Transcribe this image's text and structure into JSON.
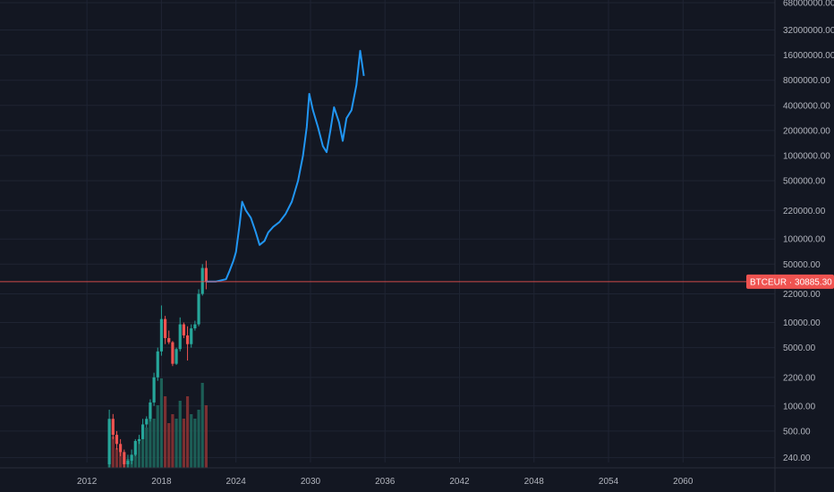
{
  "chart_data": {
    "type": "line",
    "symbol": "BTCEUR",
    "last_price": "30885.30",
    "last_price_value": 30885.3,
    "price_scale": "log",
    "grid": true,
    "colors": {
      "background": "#131722",
      "projection": "#2196f3",
      "candle_up": "#26a69a",
      "candle_down": "#ef5350",
      "volume_up": "#1e6b5f",
      "volume_down": "#8e3434",
      "price_line": "#ef5350",
      "price_label_bg": "#ef5350",
      "grid": "#1f2433",
      "axis_text": "#b2b5be"
    },
    "xlim": [
      2005.0,
      2067.4
    ],
    "ylim": [
      210,
      68000000
    ],
    "x_ticks": [
      {
        "value": 2012,
        "label": "2012"
      },
      {
        "value": 2018,
        "label": "2018"
      },
      {
        "value": 2024,
        "label": "2024"
      },
      {
        "value": 2030,
        "label": "2030"
      },
      {
        "value": 2036,
        "label": "2036"
      },
      {
        "value": 2042,
        "label": "2042"
      },
      {
        "value": 2048,
        "label": "2048"
      },
      {
        "value": 2054,
        "label": "2054"
      },
      {
        "value": 2060,
        "label": "2060"
      }
    ],
    "y_ticks": [
      {
        "value": 240,
        "label": "240.00"
      },
      {
        "value": 500,
        "label": "500.00"
      },
      {
        "value": 1000,
        "label": "1000.00"
      },
      {
        "value": 2200,
        "label": "2200.00"
      },
      {
        "value": 5000,
        "label": "5000.00"
      },
      {
        "value": 10000,
        "label": "10000.00"
      },
      {
        "value": 22000,
        "label": "22000.00"
      },
      {
        "value": 50000,
        "label": "50000.00"
      },
      {
        "value": 100000,
        "label": "100000.00"
      },
      {
        "value": 220000,
        "label": "220000.00"
      },
      {
        "value": 500000,
        "label": "500000.00"
      },
      {
        "value": 1000000,
        "label": "1000000.00"
      },
      {
        "value": 2000000,
        "label": "2000000.00"
      },
      {
        "value": 4000000,
        "label": "4000000.00"
      },
      {
        "value": 8000000,
        "label": "8000000.00"
      },
      {
        "value": 16000000,
        "label": "16000000.00"
      },
      {
        "value": 32000000,
        "label": "32000000.00"
      },
      {
        "value": 68000000,
        "label": "68000000.00"
      }
    ],
    "historical_candles": [
      {
        "x": 2013.8,
        "o": 200,
        "h": 900,
        "l": 180,
        "c": 700
      },
      {
        "x": 2014.1,
        "o": 700,
        "h": 800,
        "l": 400,
        "c": 450
      },
      {
        "x": 2014.4,
        "o": 450,
        "h": 500,
        "l": 300,
        "c": 350
      },
      {
        "x": 2014.7,
        "o": 350,
        "h": 400,
        "l": 250,
        "c": 280
      },
      {
        "x": 2015.0,
        "o": 280,
        "h": 300,
        "l": 180,
        "c": 200
      },
      {
        "x": 2015.3,
        "o": 200,
        "h": 260,
        "l": 180,
        "c": 220
      },
      {
        "x": 2015.6,
        "o": 220,
        "h": 300,
        "l": 200,
        "c": 260
      },
      {
        "x": 2015.9,
        "o": 260,
        "h": 400,
        "l": 250,
        "c": 380
      },
      {
        "x": 2016.2,
        "o": 380,
        "h": 450,
        "l": 350,
        "c": 400
      },
      {
        "x": 2016.5,
        "o": 400,
        "h": 700,
        "l": 400,
        "c": 600
      },
      {
        "x": 2016.8,
        "o": 600,
        "h": 750,
        "l": 550,
        "c": 700
      },
      {
        "x": 2017.1,
        "o": 700,
        "h": 1200,
        "l": 650,
        "c": 1100
      },
      {
        "x": 2017.4,
        "o": 1100,
        "h": 2500,
        "l": 1000,
        "c": 2200
      },
      {
        "x": 2017.7,
        "o": 2200,
        "h": 5000,
        "l": 2000,
        "c": 4500
      },
      {
        "x": 2018.0,
        "o": 4500,
        "h": 16000,
        "l": 4000,
        "c": 11000
      },
      {
        "x": 2018.3,
        "o": 11000,
        "h": 12000,
        "l": 5500,
        "c": 6500
      },
      {
        "x": 2018.6,
        "o": 6500,
        "h": 8000,
        "l": 5500,
        "c": 5800
      },
      {
        "x": 2018.9,
        "o": 5800,
        "h": 6000,
        "l": 3000,
        "c": 3200
      },
      {
        "x": 2019.2,
        "o": 3200,
        "h": 5000,
        "l": 3100,
        "c": 4800
      },
      {
        "x": 2019.5,
        "o": 4800,
        "h": 11500,
        "l": 4500,
        "c": 9500
      },
      {
        "x": 2019.8,
        "o": 9500,
        "h": 10000,
        "l": 6500,
        "c": 7000
      },
      {
        "x": 2020.1,
        "o": 7000,
        "h": 9000,
        "l": 3500,
        "c": 5500
      },
      {
        "x": 2020.4,
        "o": 5500,
        "h": 9500,
        "l": 5000,
        "c": 8500
      },
      {
        "x": 2020.7,
        "o": 8500,
        "h": 10500,
        "l": 8000,
        "c": 9500
      },
      {
        "x": 2021.0,
        "o": 9500,
        "h": 25000,
        "l": 9000,
        "c": 22000
      },
      {
        "x": 2021.3,
        "o": 22000,
        "h": 50000,
        "l": 21000,
        "c": 45000
      },
      {
        "x": 2021.6,
        "o": 45000,
        "h": 55000,
        "l": 25000,
        "c": 30885
      }
    ],
    "volume_bars": [
      {
        "x": 2013.8,
        "v": 0.5,
        "up": true
      },
      {
        "x": 2014.1,
        "v": 0.35,
        "up": false
      },
      {
        "x": 2014.4,
        "v": 0.22,
        "up": false
      },
      {
        "x": 2014.7,
        "v": 0.18,
        "up": false
      },
      {
        "x": 2015.0,
        "v": 0.12,
        "up": false
      },
      {
        "x": 2015.3,
        "v": 0.1,
        "up": true
      },
      {
        "x": 2015.6,
        "v": 0.14,
        "up": true
      },
      {
        "x": 2015.9,
        "v": 0.2,
        "up": true
      },
      {
        "x": 2016.2,
        "v": 0.3,
        "up": true
      },
      {
        "x": 2016.5,
        "v": 0.4,
        "up": true
      },
      {
        "x": 2016.8,
        "v": 0.45,
        "up": true
      },
      {
        "x": 2017.1,
        "v": 0.65,
        "up": true
      },
      {
        "x": 2017.4,
        "v": 0.55,
        "up": true
      },
      {
        "x": 2017.7,
        "v": 0.7,
        "up": true
      },
      {
        "x": 2018.0,
        "v": 1.0,
        "up": true
      },
      {
        "x": 2018.3,
        "v": 0.8,
        "up": false
      },
      {
        "x": 2018.6,
        "v": 0.5,
        "up": false
      },
      {
        "x": 2018.9,
        "v": 0.6,
        "up": false
      },
      {
        "x": 2019.2,
        "v": 0.55,
        "up": true
      },
      {
        "x": 2019.5,
        "v": 0.75,
        "up": true
      },
      {
        "x": 2019.8,
        "v": 0.55,
        "up": false
      },
      {
        "x": 2020.1,
        "v": 0.8,
        "up": false
      },
      {
        "x": 2020.4,
        "v": 0.6,
        "up": true
      },
      {
        "x": 2020.7,
        "v": 0.55,
        "up": true
      },
      {
        "x": 2021.0,
        "v": 0.65,
        "up": true
      },
      {
        "x": 2021.3,
        "v": 0.95,
        "up": true
      },
      {
        "x": 2021.6,
        "v": 0.7,
        "up": false
      }
    ],
    "projection_series": [
      {
        "x": 2021.6,
        "y": 30885
      },
      {
        "x": 2022.4,
        "y": 31000
      },
      {
        "x": 2023.2,
        "y": 33000
      },
      {
        "x": 2023.5,
        "y": 42000
      },
      {
        "x": 2023.8,
        "y": 55000
      },
      {
        "x": 2024.0,
        "y": 70000
      },
      {
        "x": 2024.3,
        "y": 150000
      },
      {
        "x": 2024.5,
        "y": 280000
      },
      {
        "x": 2024.8,
        "y": 220000
      },
      {
        "x": 2025.2,
        "y": 180000
      },
      {
        "x": 2025.6,
        "y": 120000
      },
      {
        "x": 2025.9,
        "y": 85000
      },
      {
        "x": 2026.3,
        "y": 95000
      },
      {
        "x": 2026.6,
        "y": 120000
      },
      {
        "x": 2027.0,
        "y": 140000
      },
      {
        "x": 2027.5,
        "y": 160000
      },
      {
        "x": 2028.0,
        "y": 200000
      },
      {
        "x": 2028.5,
        "y": 280000
      },
      {
        "x": 2029.0,
        "y": 500000
      },
      {
        "x": 2029.4,
        "y": 1000000
      },
      {
        "x": 2029.7,
        "y": 2200000
      },
      {
        "x": 2029.9,
        "y": 5500000
      },
      {
        "x": 2030.2,
        "y": 3500000
      },
      {
        "x": 2030.6,
        "y": 2200000
      },
      {
        "x": 2031.0,
        "y": 1300000
      },
      {
        "x": 2031.3,
        "y": 1100000
      },
      {
        "x": 2031.6,
        "y": 2000000
      },
      {
        "x": 2031.9,
        "y": 3800000
      },
      {
        "x": 2032.3,
        "y": 2500000
      },
      {
        "x": 2032.6,
        "y": 1500000
      },
      {
        "x": 2032.9,
        "y": 2800000
      },
      {
        "x": 2033.3,
        "y": 3500000
      },
      {
        "x": 2033.7,
        "y": 7000000
      },
      {
        "x": 2034.0,
        "y": 18000000
      },
      {
        "x": 2034.3,
        "y": 9000000
      }
    ]
  }
}
